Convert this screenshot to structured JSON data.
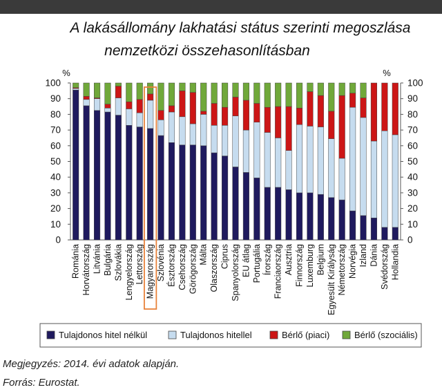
{
  "title_line1": "A lakásállomány lakhatási státus szerinti megoszlása",
  "title_line2": "nemzetközi összehasonlításban",
  "note": "Megjegyzés: 2014. évi adatok alapján.",
  "source": "Forrás: Eurostat.",
  "chart_data": {
    "type": "bar",
    "stacked": true,
    "ylabel_left": "%",
    "ylabel_right": "%",
    "ylim": [
      0,
      100
    ],
    "yticks": [
      0,
      10,
      20,
      30,
      40,
      50,
      60,
      70,
      80,
      90,
      100
    ],
    "grid": false,
    "legend_position": "bottom",
    "highlight_category": "Magyarország",
    "highlight_color": "#e8823a",
    "categories": [
      "Románia",
      "Horvátország",
      "Litvánia",
      "Bulgária",
      "Szlovákia",
      "Lengyelország",
      "Lettország",
      "Magyarország",
      "Szlovénia",
      "Észtország",
      "Csehország",
      "Görögország",
      "Málta",
      "Olaszország",
      "Ciprus",
      "Spanyolország",
      "EU átlag",
      "Portugália",
      "Írország",
      "Franciaország",
      "Ausztria",
      "Finnország",
      "Luxemburg",
      "Belgium",
      "Egyesült Királyság",
      "Németország",
      "Norvégia",
      "Izland",
      "Dánia",
      "Svédország",
      "Hollandia"
    ],
    "series": [
      {
        "name": "Tulajdonos hitel nélkül",
        "color": "#1f1a5e",
        "values": [
          95.5,
          85.5,
          82.5,
          81.5,
          79.5,
          73,
          72,
          71,
          66.5,
          62,
          60.5,
          60.5,
          60,
          55.5,
          53.5,
          46.5,
          43,
          39.5,
          33.5,
          33.5,
          32,
          30,
          30,
          29,
          27,
          25.5,
          18.5,
          15.5,
          14,
          8,
          8
        ]
      },
      {
        "name": "Tulajdonos hitellel",
        "color": "#c6dcef",
        "values": [
          1,
          4,
          7.5,
          2.5,
          11,
          10.5,
          9,
          18,
          10,
          19.5,
          18,
          13.5,
          20,
          17.5,
          19.5,
          32.5,
          27,
          35.5,
          35,
          31.5,
          25,
          43.5,
          42.5,
          43,
          37.5,
          26.5,
          66,
          62.5,
          49,
          61.5,
          59
        ]
      },
      {
        "name": "Bérlő (piaci)",
        "color": "#cc1616",
        "values": [
          0.5,
          2,
          0.5,
          2.5,
          7.5,
          4.5,
          8.5,
          4,
          6,
          4,
          16.5,
          20,
          2,
          14,
          11.5,
          12,
          19,
          12,
          16,
          20,
          28,
          10.5,
          22,
          20,
          17.5,
          40,
          9,
          12.5,
          37,
          30.5,
          33
        ]
      },
      {
        "name": "Bérlő (szociális)",
        "color": "#70a83a",
        "values": [
          3,
          8.5,
          9.5,
          13.5,
          2,
          12,
          10.5,
          7,
          17.5,
          14.5,
          5,
          6,
          18,
          13,
          15.5,
          9,
          11,
          13,
          15.5,
          15,
          15,
          16,
          5.5,
          8,
          18,
          8,
          6.5,
          9.5,
          0,
          0,
          0
        ]
      }
    ]
  }
}
